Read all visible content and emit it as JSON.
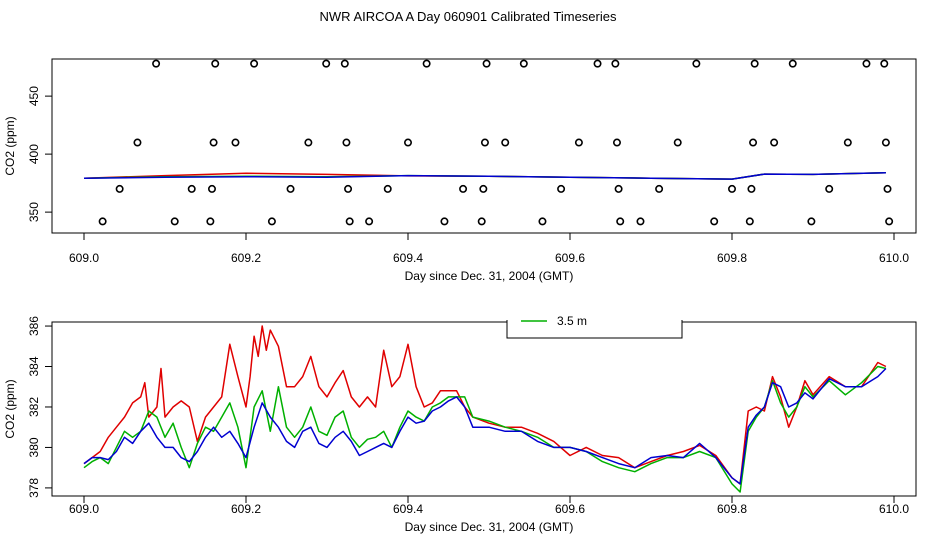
{
  "page_title": "NWR AIRCOA A  Day 060901  Calibrated Timeseries",
  "chart_data": [
    {
      "type": "scatter",
      "xlabel": "Day since Dec. 31, 2004 (GMT)",
      "ylabel": "CO2 (ppm)",
      "xlim": [
        609.0,
        610.0
      ],
      "ylim": [
        332,
        482
      ],
      "x_ticks": [
        "609.0",
        "609.2",
        "609.4",
        "609.6",
        "609.8",
        "610.0"
      ],
      "y_ticks": [
        "350",
        "400",
        "450"
      ],
      "colors": {
        "series_a": "#e00000",
        "series_b": "#00b000",
        "series_c": "#0000d0",
        "markers": "#000000"
      },
      "markers": [
        {
          "x": 609.023,
          "y": 342
        },
        {
          "x": 609.044,
          "y": 370
        },
        {
          "x": 609.066,
          "y": 410
        },
        {
          "x": 609.089,
          "y": 478
        },
        {
          "x": 609.112,
          "y": 342
        },
        {
          "x": 609.133,
          "y": 370
        },
        {
          "x": 609.156,
          "y": 342
        },
        {
          "x": 609.158,
          "y": 370
        },
        {
          "x": 609.16,
          "y": 410
        },
        {
          "x": 609.162,
          "y": 478
        },
        {
          "x": 609.187,
          "y": 410
        },
        {
          "x": 609.21,
          "y": 478
        },
        {
          "x": 609.232,
          "y": 342
        },
        {
          "x": 609.255,
          "y": 370
        },
        {
          "x": 609.277,
          "y": 410
        },
        {
          "x": 609.299,
          "y": 478
        },
        {
          "x": 609.322,
          "y": 478
        },
        {
          "x": 609.324,
          "y": 410
        },
        {
          "x": 609.326,
          "y": 370
        },
        {
          "x": 609.328,
          "y": 342
        },
        {
          "x": 609.352,
          "y": 342
        },
        {
          "x": 609.375,
          "y": 370
        },
        {
          "x": 609.4,
          "y": 410
        },
        {
          "x": 609.423,
          "y": 478
        },
        {
          "x": 609.445,
          "y": 342
        },
        {
          "x": 609.468,
          "y": 370
        },
        {
          "x": 609.491,
          "y": 342
        },
        {
          "x": 609.493,
          "y": 370
        },
        {
          "x": 609.495,
          "y": 410
        },
        {
          "x": 609.497,
          "y": 478
        },
        {
          "x": 609.52,
          "y": 410
        },
        {
          "x": 609.543,
          "y": 478
        },
        {
          "x": 609.566,
          "y": 342
        },
        {
          "x": 609.589,
          "y": 370
        },
        {
          "x": 609.611,
          "y": 410
        },
        {
          "x": 609.634,
          "y": 478
        },
        {
          "x": 609.656,
          "y": 478
        },
        {
          "x": 609.658,
          "y": 410
        },
        {
          "x": 609.66,
          "y": 370
        },
        {
          "x": 609.662,
          "y": 342
        },
        {
          "x": 609.687,
          "y": 342
        },
        {
          "x": 609.71,
          "y": 370
        },
        {
          "x": 609.733,
          "y": 410
        },
        {
          "x": 609.756,
          "y": 478
        },
        {
          "x": 609.778,
          "y": 342
        },
        {
          "x": 609.8,
          "y": 370
        },
        {
          "x": 609.822,
          "y": 342
        },
        {
          "x": 609.824,
          "y": 370
        },
        {
          "x": 609.826,
          "y": 410
        },
        {
          "x": 609.828,
          "y": 478
        },
        {
          "x": 609.852,
          "y": 410
        },
        {
          "x": 609.875,
          "y": 478
        },
        {
          "x": 609.898,
          "y": 342
        },
        {
          "x": 609.92,
          "y": 370
        },
        {
          "x": 609.943,
          "y": 410
        },
        {
          "x": 609.966,
          "y": 478
        },
        {
          "x": 609.988,
          "y": 478
        },
        {
          "x": 609.99,
          "y": 410
        },
        {
          "x": 609.992,
          "y": 370
        },
        {
          "x": 609.994,
          "y": 342
        }
      ],
      "series": [
        {
          "color": "#e00000",
          "x": [
            609.0,
            609.1,
            609.2,
            609.3,
            609.4,
            609.5,
            609.6,
            609.7,
            609.8,
            609.84,
            609.9,
            609.99
          ],
          "values": [
            379.2,
            381.5,
            383.5,
            382.5,
            381.2,
            381.0,
            380.0,
            379.2,
            378.5,
            382.8,
            382.5,
            384.0
          ]
        },
        {
          "color": "#00b000",
          "x": [
            609.0,
            609.1,
            609.2,
            609.3,
            609.4,
            609.5,
            609.6,
            609.7,
            609.8,
            609.84,
            609.9,
            609.99
          ],
          "values": [
            379.2,
            380.5,
            381.0,
            380.5,
            381.5,
            381.0,
            380.0,
            379.2,
            378.5,
            382.8,
            382.5,
            384.0
          ]
        },
        {
          "color": "#0000d0",
          "x": [
            609.0,
            609.1,
            609.2,
            609.3,
            609.4,
            609.5,
            609.6,
            609.7,
            609.8,
            609.84,
            609.9,
            609.99
          ],
          "values": [
            379.2,
            380.0,
            380.5,
            380.0,
            381.5,
            381.0,
            380.0,
            379.2,
            378.5,
            382.8,
            382.5,
            384.0
          ]
        }
      ]
    },
    {
      "type": "line",
      "xlabel": "Day since Dec. 31, 2004 (GMT)",
      "ylabel": "CO2 (ppm)",
      "xlim": [
        609.0,
        610.0
      ],
      "ylim": [
        377.6,
        386.2
      ],
      "x_ticks": [
        "609.0",
        "609.2",
        "609.4",
        "609.6",
        "609.8",
        "610.0"
      ],
      "y_ticks": [
        "378",
        "380",
        "382",
        "384",
        "386"
      ],
      "legend": {
        "position": "top-center",
        "visible_entries": [
          {
            "label": "3.5 m",
            "color": "#00b000"
          }
        ]
      },
      "series": [
        {
          "color": "#e00000",
          "x": [
            609.0,
            609.01,
            609.02,
            609.03,
            609.04,
            609.05,
            609.06,
            609.07,
            609.075,
            609.08,
            609.09,
            609.095,
            609.1,
            609.11,
            609.12,
            609.13,
            609.14,
            609.15,
            609.16,
            609.17,
            609.18,
            609.19,
            609.2,
            609.205,
            609.21,
            609.215,
            609.22,
            609.225,
            609.23,
            609.24,
            609.25,
            609.26,
            609.27,
            609.28,
            609.29,
            609.3,
            609.31,
            609.32,
            609.33,
            609.34,
            609.35,
            609.36,
            609.37,
            609.38,
            609.39,
            609.4,
            609.41,
            609.42,
            609.43,
            609.44,
            609.45,
            609.46,
            609.47,
            609.48,
            609.5,
            609.52,
            609.54,
            609.56,
            609.58,
            609.6,
            609.62,
            609.64,
            609.66,
            609.68,
            609.7,
            609.72,
            609.74,
            609.76,
            609.78,
            609.8,
            609.81,
            609.82,
            609.83,
            609.84,
            609.85,
            609.86,
            609.87,
            609.88,
            609.89,
            609.9,
            609.92,
            609.94,
            609.96,
            609.98,
            609.99
          ],
          "values": [
            379.2,
            379.5,
            379.8,
            380.5,
            381.0,
            381.5,
            382.2,
            382.5,
            383.2,
            381.5,
            382.0,
            383.9,
            381.5,
            382.0,
            382.3,
            382.0,
            380.3,
            381.5,
            382.0,
            382.5,
            385.1,
            383.5,
            382.0,
            383.5,
            385.5,
            384.5,
            386.0,
            384.8,
            385.8,
            385.0,
            383.0,
            383.0,
            383.5,
            384.5,
            383.0,
            382.5,
            383.2,
            383.8,
            382.5,
            382.0,
            382.5,
            382.0,
            384.8,
            383.0,
            383.5,
            385.1,
            383.0,
            382.0,
            382.2,
            382.8,
            382.8,
            382.8,
            382.0,
            381.5,
            381.2,
            381.0,
            381.0,
            380.7,
            380.3,
            379.6,
            380.0,
            379.6,
            379.5,
            379.0,
            379.3,
            379.6,
            379.8,
            380.1,
            379.6,
            378.5,
            378.2,
            381.8,
            382.0,
            381.8,
            383.5,
            382.5,
            381.0,
            382.0,
            383.3,
            382.6,
            383.5,
            383.0,
            383.0,
            384.2,
            384.0
          ]
        },
        {
          "color": "#00b000",
          "x": [
            609.0,
            609.01,
            609.02,
            609.03,
            609.04,
            609.05,
            609.06,
            609.07,
            609.08,
            609.09,
            609.1,
            609.11,
            609.12,
            609.13,
            609.14,
            609.15,
            609.16,
            609.17,
            609.18,
            609.19,
            609.2,
            609.21,
            609.22,
            609.23,
            609.24,
            609.25,
            609.26,
            609.27,
            609.28,
            609.29,
            609.3,
            609.31,
            609.32,
            609.33,
            609.34,
            609.35,
            609.36,
            609.37,
            609.38,
            609.39,
            609.4,
            609.41,
            609.42,
            609.43,
            609.44,
            609.45,
            609.46,
            609.47,
            609.48,
            609.5,
            609.52,
            609.54,
            609.56,
            609.58,
            609.6,
            609.62,
            609.64,
            609.66,
            609.68,
            609.7,
            609.72,
            609.74,
            609.76,
            609.78,
            609.8,
            609.81,
            609.82,
            609.83,
            609.84,
            609.85,
            609.86,
            609.87,
            609.88,
            609.89,
            609.9,
            609.92,
            609.94,
            609.96,
            609.98,
            609.99
          ],
          "values": [
            379.0,
            379.3,
            379.5,
            379.2,
            380.0,
            380.8,
            380.5,
            380.8,
            381.8,
            381.5,
            380.5,
            381.2,
            380.0,
            379.0,
            380.2,
            381.0,
            380.8,
            381.5,
            382.2,
            381.0,
            379.0,
            382.0,
            382.8,
            380.8,
            383.0,
            381.0,
            380.5,
            381.0,
            382.0,
            380.8,
            380.6,
            381.5,
            381.8,
            380.5,
            380.0,
            380.4,
            380.5,
            380.8,
            380.0,
            381.0,
            381.8,
            381.5,
            381.3,
            382.0,
            382.2,
            382.5,
            382.5,
            382.5,
            381.5,
            381.3,
            381.0,
            380.8,
            380.5,
            380.0,
            380.0,
            379.8,
            379.3,
            379.0,
            378.8,
            379.2,
            379.5,
            379.5,
            379.8,
            379.5,
            378.2,
            377.8,
            380.8,
            381.5,
            382.0,
            383.3,
            382.2,
            381.5,
            382.0,
            383.0,
            382.5,
            383.3,
            382.6,
            383.2,
            384.0,
            383.9
          ]
        },
        {
          "color": "#0000d0",
          "x": [
            609.0,
            609.01,
            609.02,
            609.03,
            609.04,
            609.05,
            609.06,
            609.07,
            609.08,
            609.09,
            609.1,
            609.11,
            609.12,
            609.13,
            609.14,
            609.15,
            609.16,
            609.17,
            609.18,
            609.19,
            609.2,
            609.21,
            609.22,
            609.23,
            609.24,
            609.25,
            609.26,
            609.27,
            609.28,
            609.29,
            609.3,
            609.31,
            609.32,
            609.33,
            609.34,
            609.35,
            609.36,
            609.37,
            609.38,
            609.39,
            609.4,
            609.41,
            609.42,
            609.43,
            609.44,
            609.45,
            609.46,
            609.47,
            609.48,
            609.5,
            609.52,
            609.54,
            609.56,
            609.58,
            609.6,
            609.62,
            609.64,
            609.66,
            609.68,
            609.7,
            609.72,
            609.74,
            609.76,
            609.78,
            609.8,
            609.81,
            609.82,
            609.83,
            609.84,
            609.85,
            609.86,
            609.87,
            609.88,
            609.89,
            609.9,
            609.92,
            609.94,
            609.96,
            609.98,
            609.99
          ],
          "values": [
            379.2,
            379.5,
            379.5,
            379.4,
            379.8,
            380.5,
            380.2,
            380.8,
            381.2,
            380.5,
            380.0,
            380.0,
            379.5,
            379.3,
            379.8,
            380.5,
            381.0,
            380.5,
            380.8,
            380.2,
            379.5,
            381.0,
            382.2,
            381.5,
            381.0,
            380.3,
            380.0,
            380.8,
            381.0,
            380.2,
            380.0,
            380.5,
            380.8,
            380.3,
            379.6,
            379.8,
            380.0,
            380.2,
            380.0,
            380.8,
            381.5,
            381.2,
            381.3,
            381.8,
            382.0,
            382.3,
            382.5,
            382.0,
            381.0,
            381.0,
            380.8,
            380.8,
            380.3,
            380.0,
            380.0,
            379.8,
            379.5,
            379.2,
            379.0,
            379.5,
            379.6,
            379.5,
            380.2,
            379.5,
            378.5,
            378.2,
            381.0,
            381.6,
            382.0,
            383.2,
            383.0,
            382.0,
            382.2,
            382.7,
            382.4,
            383.4,
            383.0,
            383.0,
            383.5,
            383.9
          ]
        }
      ]
    }
  ]
}
